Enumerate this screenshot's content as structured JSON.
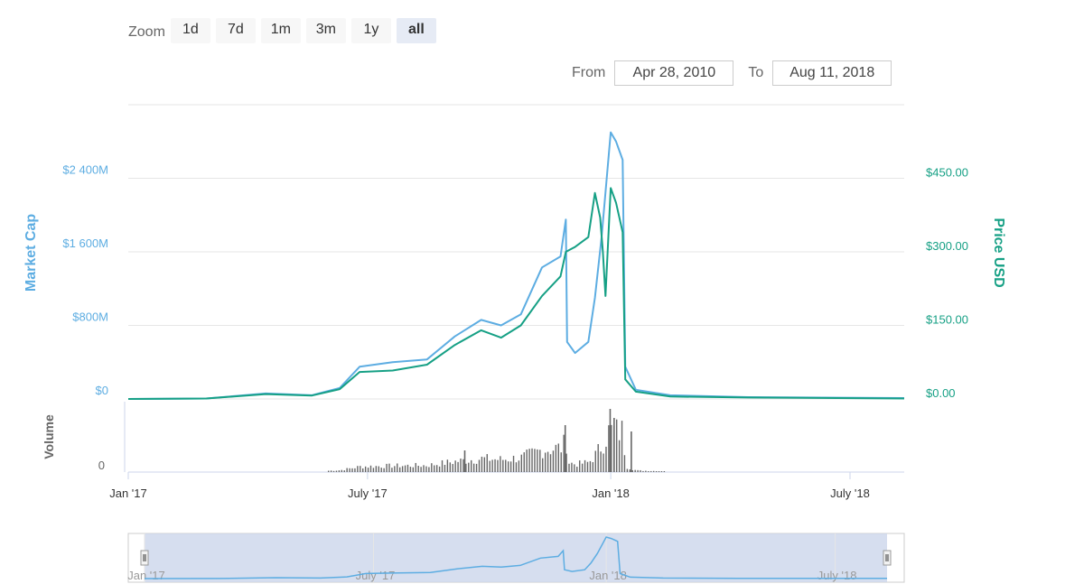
{
  "toolbar": {
    "zoom_label": "Zoom",
    "buttons": [
      "1d",
      "7d",
      "1m",
      "3m",
      "1y",
      "all"
    ],
    "active": "all",
    "from_label": "From",
    "from_value": "Apr 28, 2010",
    "to_label": "To",
    "to_value": "Aug 11, 2018"
  },
  "colors": {
    "market_cap": "#5dade2",
    "price": "#16a085",
    "volume": "#666666",
    "navigator_fill": "#ccd6eb"
  },
  "chart_data": {
    "type": "line",
    "title": "",
    "xlabel": "",
    "x_range": [
      "2017-01-01",
      "2018-08-11"
    ],
    "x_ticks": [
      "Jan '17",
      "July '17",
      "Jan '18",
      "July '18"
    ],
    "y_left": {
      "label": "Market Cap",
      "ticks": [
        "$0",
        "$800M",
        "$1 600M",
        "$2 400M"
      ],
      "range": [
        0,
        3200
      ]
    },
    "y_right": {
      "label": "Price USD",
      "ticks": [
        "$0.00",
        "$150.00",
        "$300.00",
        "$450.00"
      ],
      "range": [
        0,
        600
      ]
    },
    "volume": {
      "label": "Volume",
      "ticks": [
        "0"
      ]
    },
    "series": [
      {
        "name": "Market Cap",
        "axis": "left",
        "unit": "$M",
        "points": [
          [
            "2017-01-01",
            0
          ],
          [
            "2017-03-01",
            5
          ],
          [
            "2017-04-15",
            60
          ],
          [
            "2017-05-20",
            40
          ],
          [
            "2017-06-10",
            120
          ],
          [
            "2017-06-25",
            350
          ],
          [
            "2017-07-20",
            400
          ],
          [
            "2017-08-15",
            430
          ],
          [
            "2017-09-05",
            680
          ],
          [
            "2017-09-25",
            860
          ],
          [
            "2017-10-10",
            800
          ],
          [
            "2017-10-25",
            920
          ],
          [
            "2017-11-10",
            1430
          ],
          [
            "2017-11-24",
            1550
          ],
          [
            "2017-11-28",
            1950
          ],
          [
            "2017-11-29",
            620
          ],
          [
            "2017-12-05",
            500
          ],
          [
            "2017-12-15",
            620
          ],
          [
            "2017-12-20",
            1100
          ],
          [
            "2017-12-25",
            1750
          ],
          [
            "2018-01-01",
            2900
          ],
          [
            "2018-01-05",
            2800
          ],
          [
            "2018-01-10",
            2600
          ],
          [
            "2018-01-12",
            350
          ],
          [
            "2018-01-20",
            100
          ],
          [
            "2018-02-15",
            40
          ],
          [
            "2018-04-15",
            20
          ],
          [
            "2018-08-11",
            10
          ]
        ]
      },
      {
        "name": "Price USD",
        "axis": "right",
        "unit": "$",
        "points": [
          [
            "2017-01-01",
            0
          ],
          [
            "2017-03-01",
            1
          ],
          [
            "2017-04-15",
            10
          ],
          [
            "2017-05-20",
            7
          ],
          [
            "2017-06-10",
            20
          ],
          [
            "2017-06-25",
            55
          ],
          [
            "2017-07-20",
            58
          ],
          [
            "2017-08-15",
            70
          ],
          [
            "2017-09-05",
            110
          ],
          [
            "2017-09-25",
            140
          ],
          [
            "2017-10-10",
            125
          ],
          [
            "2017-10-25",
            150
          ],
          [
            "2017-11-10",
            210
          ],
          [
            "2017-11-24",
            250
          ],
          [
            "2017-11-28",
            300
          ],
          [
            "2017-12-05",
            310
          ],
          [
            "2017-12-15",
            330
          ],
          [
            "2017-12-20",
            420
          ],
          [
            "2017-12-24",
            370
          ],
          [
            "2017-12-26",
            300
          ],
          [
            "2017-12-28",
            210
          ],
          [
            "2018-01-01",
            430
          ],
          [
            "2018-01-05",
            400
          ],
          [
            "2018-01-10",
            340
          ],
          [
            "2018-01-12",
            40
          ],
          [
            "2018-01-20",
            15
          ],
          [
            "2018-02-15",
            5
          ],
          [
            "2018-04-15",
            3
          ],
          [
            "2018-08-11",
            1
          ]
        ]
      }
    ],
    "navigator": {
      "ticks": [
        "Jan '17",
        "July '17",
        "Jan '18",
        "July '18"
      ],
      "selection": [
        "2017-01-01",
        "2018-08-11"
      ]
    }
  }
}
